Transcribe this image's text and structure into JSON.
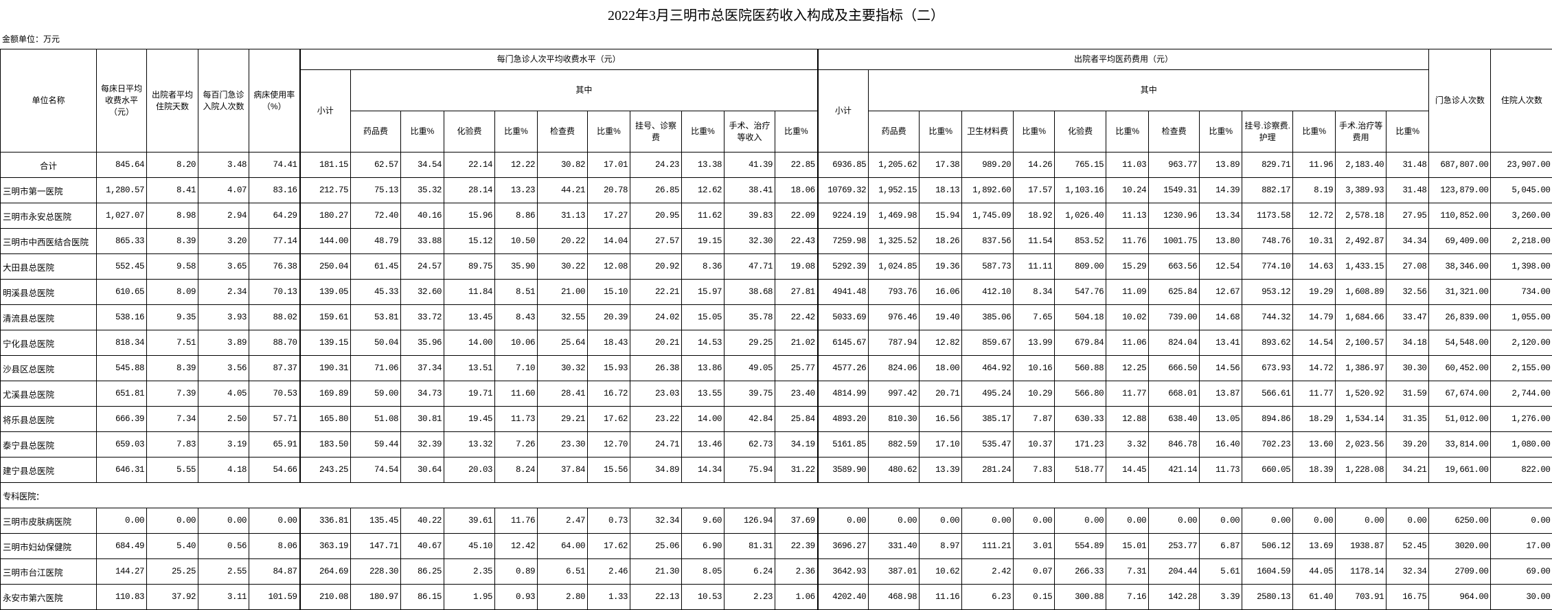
{
  "title": "2022年3月三明市总医院医药收入构成及主要指标（二）",
  "unit_label": "金额单位：万元",
  "header": {
    "unit_name": "单位名称",
    "bed_day_fee": "每床日平均收费水平（元）",
    "avg_stay_days": "出院者平均住院天数",
    "admissions_per_100": "每百门急诊入院人次数",
    "bed_usage_rate": "病床使用率（%）",
    "outpatient_group": "每门急诊人次平均收费水平（元）",
    "inpatient_group": "出院者平均医药费用（元）",
    "subtotal": "小计",
    "of_which": "其中",
    "outpatient_cols": [
      "药品费",
      "比重%",
      "化验费",
      "比重%",
      "检查费",
      "比重%",
      "挂号、诊察费",
      "比重%",
      "手术、治疗等收入",
      "比重%"
    ],
    "inpatient_cols": [
      "药品费",
      "比重%",
      "卫生材料费",
      "比重%",
      "化验费",
      "比重%",
      "检查费",
      "比重%",
      "挂号.诊察费.护理",
      "比重%",
      "手术.治疗等费用",
      "比重%"
    ],
    "outpatient_visits": "门急诊人次数",
    "inpatient_visits": "住院人次数"
  },
  "rows": [
    {
      "name": "合计",
      "total": true,
      "values": [
        "845.64",
        "8.20",
        "3.48",
        "74.41",
        "181.15",
        "62.57",
        "34.54",
        "22.14",
        "12.22",
        "30.82",
        "17.01",
        "24.23",
        "13.38",
        "41.39",
        "22.85",
        "6936.85",
        "1,205.62",
        "17.38",
        "989.20",
        "14.26",
        "765.15",
        "11.03",
        "963.77",
        "13.89",
        "829.71",
        "11.96",
        "2,183.40",
        "31.48",
        "687,807.00",
        "23,907.00"
      ]
    },
    {
      "name": "三明市第一医院",
      "values": [
        "1,280.57",
        "8.41",
        "4.07",
        "83.16",
        "212.75",
        "75.13",
        "35.32",
        "28.14",
        "13.23",
        "44.21",
        "20.78",
        "26.85",
        "12.62",
        "38.41",
        "18.06",
        "10769.32",
        "1,952.15",
        "18.13",
        "1,892.60",
        "17.57",
        "1,103.16",
        "10.24",
        "1549.31",
        "14.39",
        "882.17",
        "8.19",
        "3,389.93",
        "31.48",
        "123,879.00",
        "5,045.00"
      ]
    },
    {
      "name": "三明市永安总医院",
      "values": [
        "1,027.07",
        "8.98",
        "2.94",
        "64.29",
        "180.27",
        "72.40",
        "40.16",
        "15.96",
        "8.86",
        "31.13",
        "17.27",
        "20.95",
        "11.62",
        "39.83",
        "22.09",
        "9224.19",
        "1,469.98",
        "15.94",
        "1,745.09",
        "18.92",
        "1,026.40",
        "11.13",
        "1230.96",
        "13.34",
        "1173.58",
        "12.72",
        "2,578.18",
        "27.95",
        "110,852.00",
        "3,260.00"
      ]
    },
    {
      "name": "三明市中西医结合医院",
      "values": [
        "865.33",
        "8.39",
        "3.20",
        "77.14",
        "144.00",
        "48.79",
        "33.88",
        "15.12",
        "10.50",
        "20.22",
        "14.04",
        "27.57",
        "19.15",
        "32.30",
        "22.43",
        "7259.98",
        "1,325.52",
        "18.26",
        "837.56",
        "11.54",
        "853.52",
        "11.76",
        "1001.75",
        "13.80",
        "748.76",
        "10.31",
        "2,492.87",
        "34.34",
        "69,409.00",
        "2,218.00"
      ]
    },
    {
      "name": "大田县总医院",
      "values": [
        "552.45",
        "9.58",
        "3.65",
        "76.38",
        "250.04",
        "61.45",
        "24.57",
        "89.75",
        "35.90",
        "30.22",
        "12.08",
        "20.92",
        "8.36",
        "47.71",
        "19.08",
        "5292.39",
        "1,024.85",
        "19.36",
        "587.73",
        "11.11",
        "809.00",
        "15.29",
        "663.56",
        "12.54",
        "774.10",
        "14.63",
        "1,433.15",
        "27.08",
        "38,346.00",
        "1,398.00"
      ]
    },
    {
      "name": "明溪县总医院",
      "values": [
        "610.65",
        "8.09",
        "2.34",
        "70.13",
        "139.05",
        "45.33",
        "32.60",
        "11.84",
        "8.51",
        "21.00",
        "15.10",
        "22.21",
        "15.97",
        "38.68",
        "27.81",
        "4941.48",
        "793.76",
        "16.06",
        "412.10",
        "8.34",
        "547.76",
        "11.09",
        "625.84",
        "12.67",
        "953.12",
        "19.29",
        "1,608.89",
        "32.56",
        "31,321.00",
        "734.00"
      ]
    },
    {
      "name": "清流县总医院",
      "values": [
        "538.16",
        "9.35",
        "3.93",
        "88.02",
        "159.61",
        "53.81",
        "33.72",
        "13.45",
        "8.43",
        "32.55",
        "20.39",
        "24.02",
        "15.05",
        "35.78",
        "22.42",
        "5033.69",
        "976.46",
        "19.40",
        "385.06",
        "7.65",
        "504.18",
        "10.02",
        "739.00",
        "14.68",
        "744.32",
        "14.79",
        "1,684.66",
        "33.47",
        "26,839.00",
        "1,055.00"
      ]
    },
    {
      "name": "宁化县总医院",
      "values": [
        "818.34",
        "7.51",
        "3.89",
        "88.70",
        "139.15",
        "50.04",
        "35.96",
        "14.00",
        "10.06",
        "25.64",
        "18.43",
        "20.21",
        "14.53",
        "29.25",
        "21.02",
        "6145.67",
        "787.94",
        "12.82",
        "859.67",
        "13.99",
        "679.84",
        "11.06",
        "824.04",
        "13.41",
        "893.62",
        "14.54",
        "2,100.57",
        "34.18",
        "54,548.00",
        "2,120.00"
      ]
    },
    {
      "name": "沙县区总医院",
      "values": [
        "545.88",
        "8.39",
        "3.56",
        "87.37",
        "190.31",
        "71.06",
        "37.34",
        "13.51",
        "7.10",
        "30.32",
        "15.93",
        "26.38",
        "13.86",
        "49.05",
        "25.77",
        "4577.26",
        "824.06",
        "18.00",
        "464.92",
        "10.16",
        "560.88",
        "12.25",
        "666.50",
        "14.56",
        "673.93",
        "14.72",
        "1,386.97",
        "30.30",
        "60,452.00",
        "2,155.00"
      ]
    },
    {
      "name": "尤溪县总医院",
      "values": [
        "651.81",
        "7.39",
        "4.05",
        "70.53",
        "169.89",
        "59.00",
        "34.73",
        "19.71",
        "11.60",
        "28.41",
        "16.72",
        "23.03",
        "13.55",
        "39.75",
        "23.40",
        "4814.99",
        "997.42",
        "20.71",
        "495.24",
        "10.29",
        "566.80",
        "11.77",
        "668.01",
        "13.87",
        "566.61",
        "11.77",
        "1,520.92",
        "31.59",
        "67,674.00",
        "2,744.00"
      ]
    },
    {
      "name": "将乐县总医院",
      "values": [
        "666.39",
        "7.34",
        "2.50",
        "57.71",
        "165.80",
        "51.08",
        "30.81",
        "19.45",
        "11.73",
        "29.21",
        "17.62",
        "23.22",
        "14.00",
        "42.84",
        "25.84",
        "4893.20",
        "810.30",
        "16.56",
        "385.17",
        "7.87",
        "630.33",
        "12.88",
        "638.40",
        "13.05",
        "894.86",
        "18.29",
        "1,534.14",
        "31.35",
        "51,012.00",
        "1,276.00"
      ]
    },
    {
      "name": "泰宁县总医院",
      "values": [
        "659.03",
        "7.83",
        "3.19",
        "65.91",
        "183.50",
        "59.44",
        "32.39",
        "13.32",
        "7.26",
        "23.30",
        "12.70",
        "24.71",
        "13.46",
        "62.73",
        "34.19",
        "5161.85",
        "882.59",
        "17.10",
        "535.47",
        "10.37",
        "171.23",
        "3.32",
        "846.78",
        "16.40",
        "702.23",
        "13.60",
        "2,023.56",
        "39.20",
        "33,814.00",
        "1,080.00"
      ]
    },
    {
      "name": "建宁县总医院",
      "values": [
        "646.31",
        "5.55",
        "4.18",
        "54.66",
        "243.25",
        "74.54",
        "30.64",
        "20.03",
        "8.24",
        "37.84",
        "15.56",
        "34.89",
        "14.34",
        "75.94",
        "31.22",
        "3589.90",
        "480.62",
        "13.39",
        "281.24",
        "7.83",
        "518.77",
        "14.45",
        "421.14",
        "11.73",
        "660.05",
        "18.39",
        "1,228.08",
        "34.21",
        "19,661.00",
        "822.00"
      ]
    },
    {
      "section": "专科医院："
    },
    {
      "name": "三明市皮肤病医院",
      "values": [
        "0.00",
        "0.00",
        "0.00",
        "0.00",
        "336.81",
        "135.45",
        "40.22",
        "39.61",
        "11.76",
        "2.47",
        "0.73",
        "32.34",
        "9.60",
        "126.94",
        "37.69",
        "0.00",
        "0.00",
        "0.00",
        "0.00",
        "0.00",
        "0.00",
        "0.00",
        "0.00",
        "0.00",
        "0.00",
        "0.00",
        "0.00",
        "0.00",
        "6250.00",
        "0.00"
      ]
    },
    {
      "name": "三明市妇幼保健院",
      "values": [
        "684.49",
        "5.40",
        "0.56",
        "8.06",
        "363.19",
        "147.71",
        "40.67",
        "45.10",
        "12.42",
        "64.00",
        "17.62",
        "25.06",
        "6.90",
        "81.31",
        "22.39",
        "3696.27",
        "331.40",
        "8.97",
        "111.21",
        "3.01",
        "554.89",
        "15.01",
        "253.77",
        "6.87",
        "506.12",
        "13.69",
        "1938.87",
        "52.45",
        "3020.00",
        "17.00"
      ]
    },
    {
      "name": "三明市台江医院",
      "values": [
        "144.27",
        "25.25",
        "2.55",
        "84.87",
        "264.69",
        "228.30",
        "86.25",
        "2.35",
        "0.89",
        "6.51",
        "2.46",
        "21.30",
        "8.05",
        "6.24",
        "2.36",
        "3642.93",
        "387.01",
        "10.62",
        "2.42",
        "0.07",
        "266.33",
        "7.31",
        "204.44",
        "5.61",
        "1604.59",
        "44.05",
        "1178.14",
        "32.34",
        "2709.00",
        "69.00"
      ]
    },
    {
      "name": "永安市第六医院",
      "values": [
        "110.83",
        "37.92",
        "3.11",
        "101.59",
        "210.08",
        "180.97",
        "86.15",
        "1.95",
        "0.93",
        "2.80",
        "1.33",
        "22.13",
        "10.53",
        "2.23",
        "1.06",
        "4202.40",
        "468.98",
        "11.16",
        "6.23",
        "0.15",
        "300.88",
        "7.16",
        "142.28",
        "3.39",
        "2580.13",
        "61.40",
        "703.91",
        "16.75",
        "964.00",
        "30.00"
      ]
    }
  ]
}
